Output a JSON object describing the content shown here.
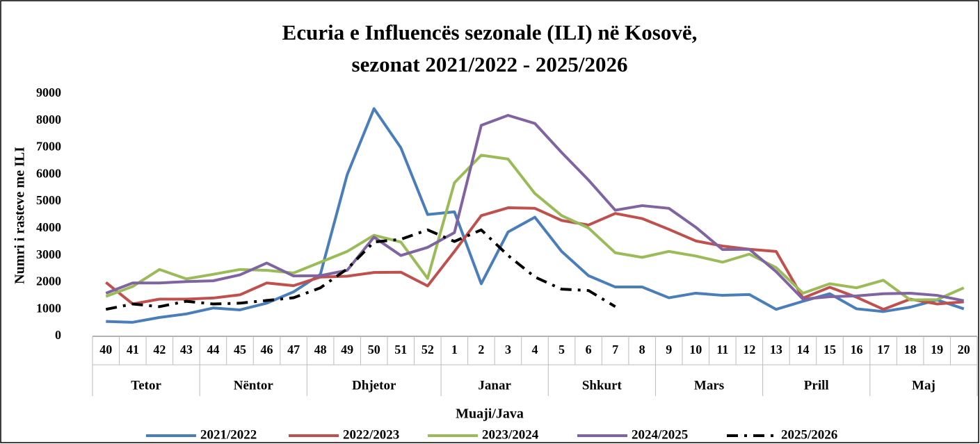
{
  "chart_data": {
    "type": "line",
    "title": [
      "Ecuria e Influencës sezonale (ILI) në Kosovë,",
      "sezonat 2021/2022 - 2025/2026"
    ],
    "y_label": "Numri i rasteve me ILI",
    "x_label": "Muaji/Java",
    "categories": [
      "40",
      "41",
      "42",
      "43",
      "44",
      "45",
      "46",
      "47",
      "48",
      "49",
      "50",
      "51",
      "52",
      "1",
      "2",
      "3",
      "4",
      "5",
      "6",
      "7",
      "8",
      "9",
      "10",
      "11",
      "12",
      "13",
      "14",
      "15",
      "16",
      "17",
      "18",
      "19",
      "20"
    ],
    "month_groups": [
      {
        "name": "Tetor",
        "span": 4
      },
      {
        "name": "Nëntor",
        "span": 4
      },
      {
        "name": "Dhjetor",
        "span": 5
      },
      {
        "name": "Janar",
        "span": 4
      },
      {
        "name": "Shkurt",
        "span": 4
      },
      {
        "name": "Mars",
        "span": 4
      },
      {
        "name": "Prill",
        "span": 4
      },
      {
        "name": "Maj",
        "span": 4
      }
    ],
    "ylim": [
      0,
      9000
    ],
    "yticks": [
      0,
      1000,
      2000,
      3000,
      4000,
      5000,
      6000,
      7000,
      8000,
      9000
    ],
    "grid": false,
    "legend": "bottom",
    "series": [
      {
        "name": "2021/2022",
        "color": "#4a7ebb",
        "style": "solid",
        "values": [
          550,
          520,
          700,
          830,
          1050,
          980,
          1230,
          1650,
          2300,
          6000,
          8450,
          7000,
          4520,
          4620,
          1950,
          3870,
          4420,
          3150,
          2250,
          1830,
          1830,
          1430,
          1600,
          1520,
          1550,
          1000,
          1300,
          1580,
          1020,
          920,
          1080,
          1350,
          1020
        ]
      },
      {
        "name": "2022/2023",
        "color": "#c0504d",
        "style": "solid",
        "values": [
          2000,
          1200,
          1380,
          1380,
          1420,
          1540,
          1980,
          1880,
          2200,
          2230,
          2370,
          2380,
          1870,
          3150,
          4480,
          4770,
          4750,
          4300,
          4130,
          4560,
          4370,
          3970,
          3540,
          3350,
          3230,
          3150,
          1420,
          1820,
          1450,
          1000,
          1380,
          1200,
          1280
        ]
      },
      {
        "name": "2023/2024",
        "color": "#9bbb59",
        "style": "solid",
        "values": [
          1480,
          1850,
          2480,
          2130,
          2300,
          2480,
          2450,
          2350,
          2750,
          3150,
          3750,
          3500,
          2150,
          5700,
          6720,
          6580,
          5300,
          4480,
          4020,
          3100,
          2930,
          3150,
          2980,
          2750,
          3050,
          2550,
          1600,
          1950,
          1800,
          2080,
          1350,
          1360,
          1800
        ]
      },
      {
        "name": "2024/2025",
        "color": "#8064a2",
        "style": "solid",
        "values": [
          1600,
          1980,
          1980,
          2030,
          2060,
          2280,
          2720,
          2240,
          2250,
          2450,
          3680,
          3000,
          3300,
          3850,
          7830,
          8200,
          7900,
          6820,
          5800,
          4680,
          4850,
          4750,
          4050,
          3220,
          3230,
          2400,
          1380,
          1470,
          1500,
          1580,
          1600,
          1520,
          1320
        ]
      },
      {
        "name": "2025/2026",
        "color": "#000000",
        "style": "dashdot",
        "values": [
          1000,
          1200,
          1100,
          1300,
          1200,
          1230,
          1330,
          1430,
          1800,
          2500,
          3500,
          3600,
          3950,
          3520,
          3950,
          3000,
          2200,
          1750,
          1700,
          1100,
          null,
          null,
          null,
          null,
          null,
          null,
          null,
          null,
          null,
          null,
          null,
          null,
          null
        ]
      }
    ]
  }
}
